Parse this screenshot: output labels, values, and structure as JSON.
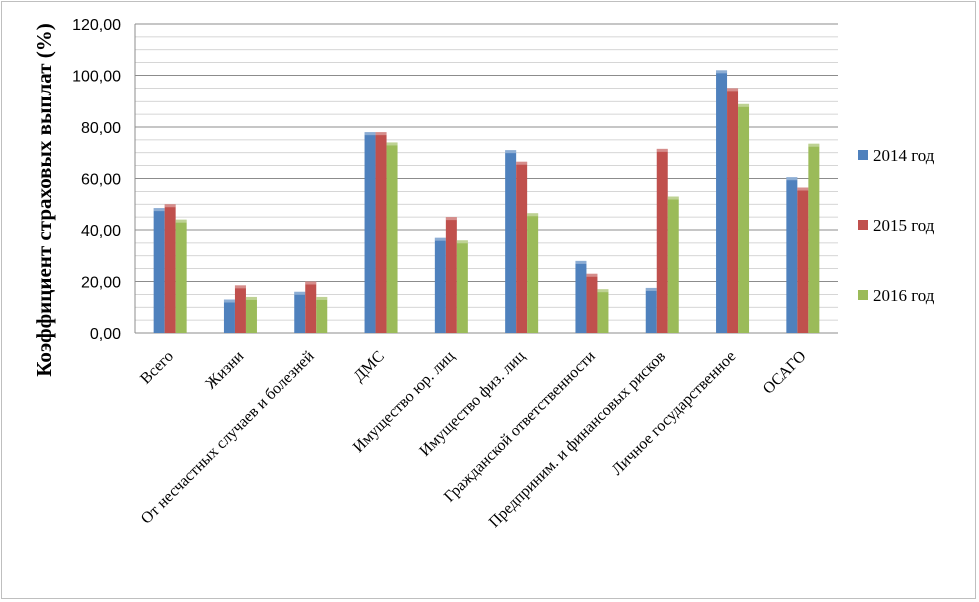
{
  "chart_data": {
    "type": "bar",
    "title": "",
    "xlabel": "",
    "ylabel": "Коэффициент страховых выплат (%)",
    "ylim": [
      0,
      120
    ],
    "ytick_step": 20,
    "ytick_labels": [
      "0,00",
      "20,00",
      "40,00",
      "60,00",
      "80,00",
      "100,00",
      "120,00"
    ],
    "grid": true,
    "legend_position": "right",
    "categories": [
      "Всего",
      "Жизни",
      "От несчастных случаев и болезней",
      "ДМС",
      "Имущество юр. лиц",
      "Имущество физ. лиц",
      "Гражданской ответственности",
      "Предприним. и финансовых рисков",
      "Личное государственное",
      "ОСАГО"
    ],
    "series": [
      {
        "name": "2014 год",
        "color": "#4f81bd",
        "values": [
          48.5,
          13.0,
          16.0,
          78.0,
          37.0,
          71.0,
          28.0,
          17.5,
          102.0,
          60.5
        ]
      },
      {
        "name": "2015 год",
        "color": "#c0504d",
        "values": [
          50.0,
          18.5,
          20.0,
          78.0,
          45.0,
          66.5,
          23.0,
          71.5,
          95.0,
          56.5
        ]
      },
      {
        "name": "2016 год",
        "color": "#9bbb59",
        "values": [
          44.0,
          14.0,
          14.0,
          74.0,
          36.0,
          46.5,
          17.0,
          53.0,
          89.0,
          73.5
        ]
      }
    ]
  }
}
